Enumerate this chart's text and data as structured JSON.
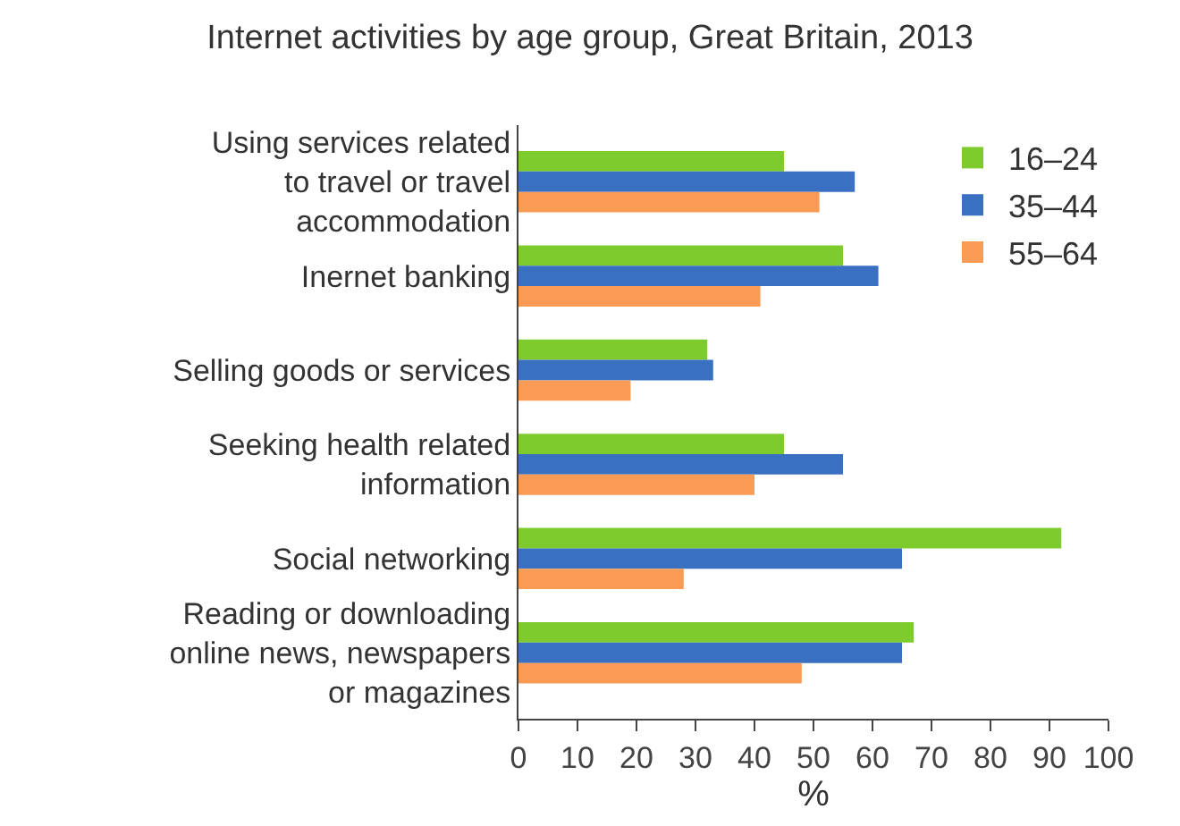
{
  "chart_data": {
    "type": "bar",
    "orientation": "horizontal",
    "title": "Internet activities by age group, Great Britain, 2013",
    "xlabel": "%",
    "categories": [
      "Using services related\nto travel or travel\naccommodation",
      "Inernet banking",
      "Selling goods or services",
      "Seeking health related\ninformation",
      "Social networking",
      "Reading or downloading\nonline news, newspapers\nor magazines"
    ],
    "series": [
      {
        "name": "16–24",
        "color": "#7dcb2c",
        "values": [
          45,
          55,
          32,
          45,
          92,
          67
        ]
      },
      {
        "name": "35–44",
        "color": "#3a70c2",
        "values": [
          57,
          61,
          33,
          55,
          65,
          65
        ]
      },
      {
        "name": "55–64",
        "color": "#f99b55",
        "values": [
          51,
          41,
          19,
          40,
          28,
          48
        ]
      }
    ],
    "xlim": [
      0,
      100
    ],
    "xticks": [
      0,
      10,
      20,
      30,
      40,
      50,
      60,
      70,
      80,
      90,
      100
    ],
    "legend": "top right"
  }
}
